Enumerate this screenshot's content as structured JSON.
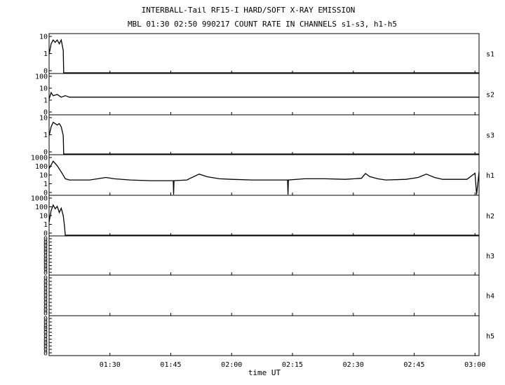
{
  "chart_data": {
    "type": "line",
    "title": "INTERBALL-Tail RF15-I HARD/SOFT X-RAY EMISSION",
    "subtitle": "MBL 01:30 02:50 990217  COUNT RATE IN CHANNELS s1-s3, h1-h5",
    "xlabel": "time UT",
    "x_ticks": [
      "01:30",
      "01:45",
      "02:00",
      "02:15",
      "02:30",
      "02:45",
      "03:00"
    ],
    "x_tick_minutes": [
      90,
      105,
      120,
      135,
      150,
      165,
      180
    ],
    "xlim_minutes": [
      75,
      181
    ],
    "log_scale_y": true,
    "grid": false,
    "panels": [
      {
        "name": "s1",
        "y_ticks": [
          "10",
          "1",
          "0"
        ],
        "ylim": [
          0.3,
          15
        ],
        "series": [
          {
            "t": 75.0,
            "v": 2
          },
          {
            "t": 75.5,
            "v": 6
          },
          {
            "t": 76.0,
            "v": 9
          },
          {
            "t": 76.5,
            "v": 7
          },
          {
            "t": 77.0,
            "v": 9
          },
          {
            "t": 77.5,
            "v": 6
          },
          {
            "t": 78.0,
            "v": 9
          },
          {
            "t": 78.5,
            "v": 3
          },
          {
            "t": 78.6,
            "v": 0.3
          },
          {
            "t": 181.0,
            "v": 0.3
          }
        ]
      },
      {
        "name": "s2",
        "y_ticks": [
          "100",
          "10",
          "1",
          "0"
        ],
        "ylim": [
          0.3,
          120
        ],
        "series": [
          {
            "t": 75.0,
            "v": 3
          },
          {
            "t": 75.5,
            "v": 8
          },
          {
            "t": 76.0,
            "v": 5
          },
          {
            "t": 77.0,
            "v": 6
          },
          {
            "t": 78.0,
            "v": 4
          },
          {
            "t": 79.0,
            "v": 5
          },
          {
            "t": 80.0,
            "v": 4
          },
          {
            "t": 90.0,
            "v": 4
          },
          {
            "t": 100.0,
            "v": 4
          },
          {
            "t": 110.0,
            "v": 4
          },
          {
            "t": 120.0,
            "v": 4
          },
          {
            "t": 130.0,
            "v": 4
          },
          {
            "t": 140.0,
            "v": 4
          },
          {
            "t": 150.0,
            "v": 4
          },
          {
            "t": 160.0,
            "v": 4
          },
          {
            "t": 170.0,
            "v": 4
          },
          {
            "t": 180.0,
            "v": 4
          },
          {
            "t": 181.0,
            "v": 4
          }
        ]
      },
      {
        "name": "s3",
        "y_ticks": [
          "10",
          "1",
          "0"
        ],
        "ylim": [
          0.3,
          15
        ],
        "series": [
          {
            "t": 75.0,
            "v": 2
          },
          {
            "t": 75.5,
            "v": 5
          },
          {
            "t": 76.0,
            "v": 8
          },
          {
            "t": 77.0,
            "v": 6
          },
          {
            "t": 77.5,
            "v": 7
          },
          {
            "t": 78.0,
            "v": 5
          },
          {
            "t": 78.5,
            "v": 2
          },
          {
            "t": 78.6,
            "v": 0.3
          },
          {
            "t": 181.0,
            "v": 0.3
          }
        ]
      },
      {
        "name": "h1",
        "y_ticks": [
          "1000",
          "100",
          "10",
          "1",
          "0"
        ],
        "ylim": [
          0.3,
          1200
        ],
        "series": [
          {
            "t": 75.0,
            "v": 80
          },
          {
            "t": 76.0,
            "v": 400
          },
          {
            "t": 77.0,
            "v": 150
          },
          {
            "t": 78.0,
            "v": 40
          },
          {
            "t": 79.0,
            "v": 9
          },
          {
            "t": 80.0,
            "v": 7
          },
          {
            "t": 85.0,
            "v": 7
          },
          {
            "t": 87.0,
            "v": 9
          },
          {
            "t": 89.0,
            "v": 12
          },
          {
            "t": 91.0,
            "v": 9
          },
          {
            "t": 95.0,
            "v": 7
          },
          {
            "t": 100.0,
            "v": 6
          },
          {
            "t": 105.0,
            "v": 6
          },
          {
            "t": 105.6,
            "v": 6
          },
          {
            "t": 105.7,
            "v": 0.3
          },
          {
            "t": 105.8,
            "v": 6
          },
          {
            "t": 109.0,
            "v": 7
          },
          {
            "t": 110.0,
            "v": 11
          },
          {
            "t": 112.0,
            "v": 25
          },
          {
            "t": 114.0,
            "v": 14
          },
          {
            "t": 117.0,
            "v": 9
          },
          {
            "t": 120.0,
            "v": 8
          },
          {
            "t": 125.0,
            "v": 7
          },
          {
            "t": 130.0,
            "v": 7
          },
          {
            "t": 133.0,
            "v": 7
          },
          {
            "t": 133.8,
            "v": 7
          },
          {
            "t": 133.9,
            "v": 0.3
          },
          {
            "t": 134.0,
            "v": 7
          },
          {
            "t": 138.0,
            "v": 9
          },
          {
            "t": 143.0,
            "v": 9
          },
          {
            "t": 148.0,
            "v": 8
          },
          {
            "t": 152.0,
            "v": 10
          },
          {
            "t": 153.0,
            "v": 28
          },
          {
            "t": 154.0,
            "v": 15
          },
          {
            "t": 156.0,
            "v": 9
          },
          {
            "t": 158.0,
            "v": 7
          },
          {
            "t": 163.0,
            "v": 8
          },
          {
            "t": 166.0,
            "v": 12
          },
          {
            "t": 168.0,
            "v": 25
          },
          {
            "t": 170.0,
            "v": 12
          },
          {
            "t": 172.0,
            "v": 8
          },
          {
            "t": 178.0,
            "v": 8
          },
          {
            "t": 180.0,
            "v": 30
          },
          {
            "t": 180.4,
            "v": 0.3
          },
          {
            "t": 181.0,
            "v": 40
          }
        ]
      },
      {
        "name": "h2",
        "y_ticks": [
          "1000",
          "100",
          "10",
          "1",
          "0"
        ],
        "ylim": [
          0.3,
          1200
        ],
        "series": [
          {
            "t": 75.0,
            "v": 5
          },
          {
            "t": 75.5,
            "v": 60
          },
          {
            "t": 76.0,
            "v": 200
          },
          {
            "t": 76.5,
            "v": 90
          },
          {
            "t": 77.0,
            "v": 150
          },
          {
            "t": 77.5,
            "v": 40
          },
          {
            "t": 78.0,
            "v": 100
          },
          {
            "t": 78.5,
            "v": 20
          },
          {
            "t": 78.8,
            "v": 2
          },
          {
            "t": 79.0,
            "v": 0.3
          },
          {
            "t": 181.0,
            "v": 0.3
          }
        ]
      },
      {
        "name": "h3",
        "y_ticks": [
          "0",
          "0",
          "0",
          "0",
          "0",
          "0",
          "0",
          "0",
          "0",
          "0",
          "0"
        ],
        "ylim": [
          0.3,
          1
        ],
        "series": []
      },
      {
        "name": "h4",
        "y_ticks": [
          "0",
          "0",
          "0",
          "0",
          "0",
          "0",
          "0",
          "0",
          "0",
          "0",
          "0"
        ],
        "ylim": [
          0.3,
          1
        ],
        "series": []
      },
      {
        "name": "h5",
        "y_ticks": [
          "0",
          "0",
          "0",
          "0",
          "0",
          "0",
          "0",
          "0",
          "0",
          "0",
          "0"
        ],
        "ylim": [
          0.3,
          1
        ],
        "series": []
      }
    ]
  }
}
